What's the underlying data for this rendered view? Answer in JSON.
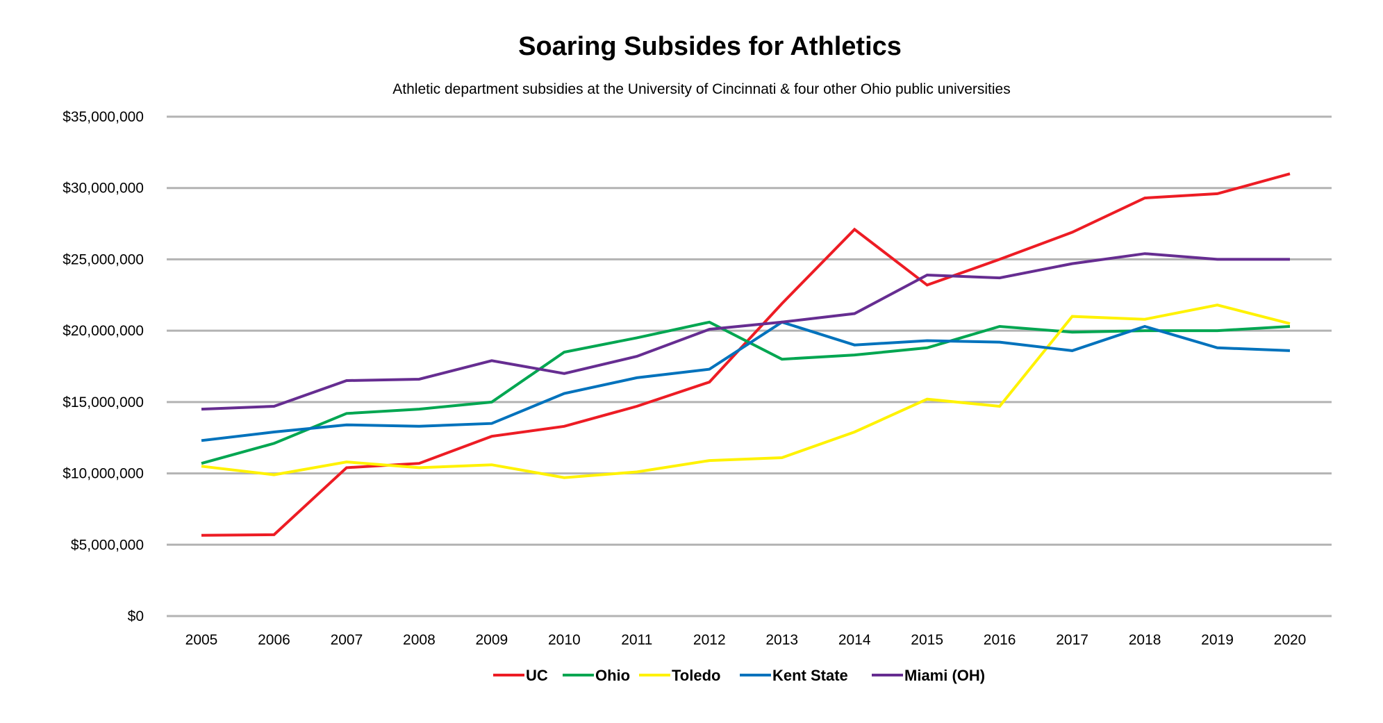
{
  "chart_data": {
    "type": "line",
    "title": "Soaring Subsides for Athletics",
    "subtitle": "Athletic department subsidies at the University of Cincinnati & four other Ohio public universities",
    "xlabel": "",
    "ylabel": "",
    "ylim": [
      0,
      35000000
    ],
    "y_ticks": [
      0,
      5000000,
      10000000,
      15000000,
      20000000,
      25000000,
      30000000,
      35000000
    ],
    "y_tick_labels": [
      "$0",
      "$5,000,000",
      "$10,000,000",
      "$15,000,000",
      "$20,000,000",
      "$25,000,000",
      "$30,000,000",
      "$35,000,000"
    ],
    "grid": true,
    "legend_position": "bottom",
    "categories": [
      "2005",
      "2006",
      "2007",
      "2008",
      "2009",
      "2010",
      "2011",
      "2012",
      "2013",
      "2014",
      "2015",
      "2016",
      "2017",
      "2018",
      "2019",
      "2020"
    ],
    "series": [
      {
        "name": "UC",
        "color": "#ed1c24",
        "values": [
          5660000,
          5700000,
          10400000,
          10700000,
          12600000,
          13300000,
          14700000,
          16400000,
          21900000,
          27100000,
          23200000,
          25000000,
          26900000,
          29300000,
          29600000,
          31000000
        ]
      },
      {
        "name": "Ohio",
        "color": "#00a651",
        "values": [
          10700000,
          12100000,
          14200000,
          14500000,
          15000000,
          18500000,
          19500000,
          20600000,
          18000000,
          18300000,
          18800000,
          20300000,
          19900000,
          20000000,
          20000000,
          20300000
        ]
      },
      {
        "name": "Toledo",
        "color": "#fff200",
        "values": [
          10500000,
          9900000,
          10800000,
          10400000,
          10600000,
          9700000,
          10100000,
          10900000,
          11100000,
          12900000,
          15200000,
          14700000,
          21000000,
          20800000,
          21800000,
          20500000
        ]
      },
      {
        "name": "Kent State",
        "color": "#0072bc",
        "values": [
          12300000,
          12900000,
          13400000,
          13300000,
          13500000,
          15600000,
          16700000,
          17300000,
          20600000,
          19000000,
          19300000,
          19200000,
          18600000,
          20300000,
          18800000,
          18600000
        ]
      },
      {
        "name": "Miami (OH)",
        "color": "#662d91",
        "values": [
          14500000,
          14700000,
          16500000,
          16600000,
          17900000,
          17000000,
          18200000,
          20100000,
          20600000,
          21200000,
          23900000,
          23700000,
          24700000,
          25400000,
          25000000,
          25000000
        ]
      }
    ],
    "gridline_color": "#b3b3b3"
  }
}
